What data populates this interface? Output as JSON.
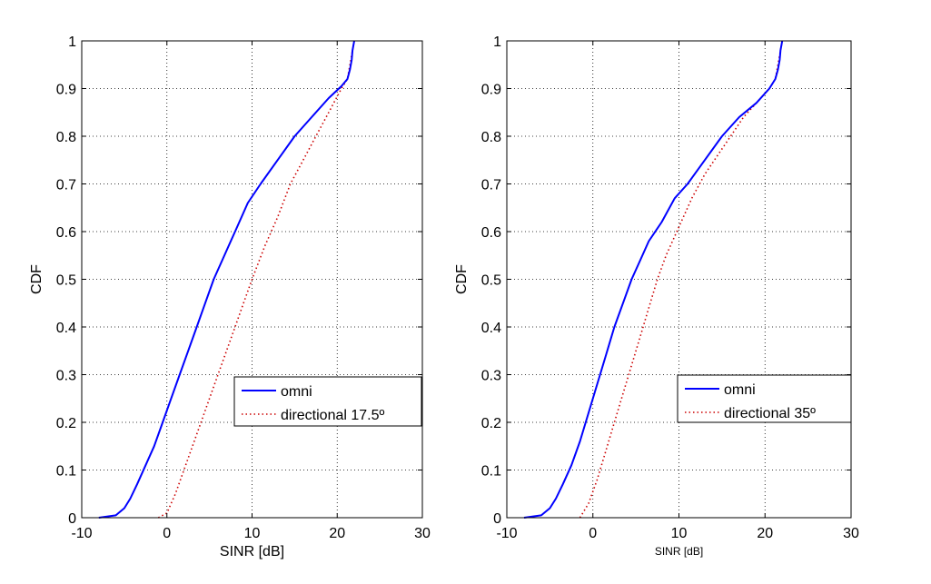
{
  "chart_data": [
    {
      "type": "line",
      "xlabel": "SINR [dB]",
      "ylabel": "CDF",
      "xlim": [
        -10,
        30
      ],
      "ylim": [
        0,
        1
      ],
      "xticks": [
        "-10",
        "0",
        "10",
        "20",
        "30"
      ],
      "yticks": [
        "0",
        "0.1",
        "0.2",
        "0.3",
        "0.4",
        "0.5",
        "0.6",
        "0.7",
        "0.8",
        "0.9",
        "1"
      ],
      "grid": true,
      "legend_position": "lower-right",
      "series": [
        {
          "name": "omni",
          "color": "#0000ff",
          "style": "solid",
          "x": [
            -8,
            -6,
            -5,
            -4.3,
            -3.5,
            -2.5,
            -1.5,
            -0.5,
            0.5,
            1.5,
            2.5,
            3.5,
            4.5,
            5.5,
            6.5,
            8,
            9.5,
            11,
            13,
            15,
            17,
            19,
            20.5,
            21.2,
            21.5,
            21.7,
            21.8,
            22
          ],
          "y": [
            0,
            0.005,
            0.02,
            0.04,
            0.07,
            0.11,
            0.15,
            0.2,
            0.25,
            0.3,
            0.35,
            0.4,
            0.45,
            0.5,
            0.54,
            0.6,
            0.66,
            0.7,
            0.75,
            0.8,
            0.84,
            0.88,
            0.905,
            0.92,
            0.94,
            0.96,
            0.98,
            1.0
          ]
        },
        {
          "name": "directional 17.5º",
          "color": "#cc0000",
          "style": "dotted",
          "x": [
            -1,
            0,
            0.5,
            1,
            2,
            3,
            4,
            5,
            6,
            7,
            8,
            9,
            10,
            11.5,
            13,
            14.5,
            16,
            17.5,
            19,
            20.5,
            21.2,
            21.5,
            21.8,
            22
          ],
          "y": [
            0,
            0.01,
            0.03,
            0.05,
            0.1,
            0.15,
            0.2,
            0.25,
            0.3,
            0.35,
            0.4,
            0.45,
            0.5,
            0.57,
            0.63,
            0.7,
            0.75,
            0.8,
            0.85,
            0.9,
            0.92,
            0.95,
            0.98,
            1.0
          ]
        }
      ]
    },
    {
      "type": "line",
      "xlabel": "SINR [dB]",
      "ylabel": "CDF",
      "xlim": [
        -10,
        30
      ],
      "ylim": [
        0,
        1
      ],
      "xticks": [
        "-10",
        "0",
        "10",
        "20",
        "30"
      ],
      "yticks": [
        "0",
        "0.1",
        "0.2",
        "0.3",
        "0.4",
        "0.5",
        "0.6",
        "0.7",
        "0.8",
        "0.9",
        "1"
      ],
      "grid": true,
      "legend_position": "lower-right",
      "series": [
        {
          "name": "omni",
          "color": "#0000ff",
          "style": "solid",
          "x": [
            -8,
            -6,
            -5,
            -4.3,
            -3.5,
            -2.5,
            -1.5,
            -0.5,
            0.5,
            1.5,
            2.5,
            3.5,
            4.5,
            5.5,
            6.5,
            8,
            9.5,
            11,
            13,
            15,
            17,
            19,
            20.5,
            21.2,
            21.5,
            21.7,
            21.8,
            22
          ],
          "y": [
            0,
            0.005,
            0.02,
            0.04,
            0.07,
            0.11,
            0.16,
            0.22,
            0.28,
            0.34,
            0.4,
            0.45,
            0.5,
            0.54,
            0.58,
            0.62,
            0.67,
            0.7,
            0.75,
            0.8,
            0.84,
            0.87,
            0.9,
            0.92,
            0.94,
            0.96,
            0.98,
            1.0
          ]
        },
        {
          "name": "directional 35º",
          "color": "#cc0000",
          "style": "dotted",
          "x": [
            -1.5,
            -0.5,
            0.5,
            1.5,
            2.5,
            3.5,
            4.5,
            5.5,
            6.5,
            7.5,
            8.5,
            10,
            11.5,
            13,
            14.5,
            16,
            17.5,
            19,
            20.5,
            21.2,
            21.5,
            21.8,
            22
          ],
          "y": [
            0,
            0.03,
            0.08,
            0.14,
            0.2,
            0.26,
            0.32,
            0.38,
            0.44,
            0.5,
            0.55,
            0.61,
            0.67,
            0.72,
            0.76,
            0.8,
            0.84,
            0.87,
            0.9,
            0.92,
            0.95,
            0.98,
            1.0
          ]
        }
      ]
    }
  ]
}
